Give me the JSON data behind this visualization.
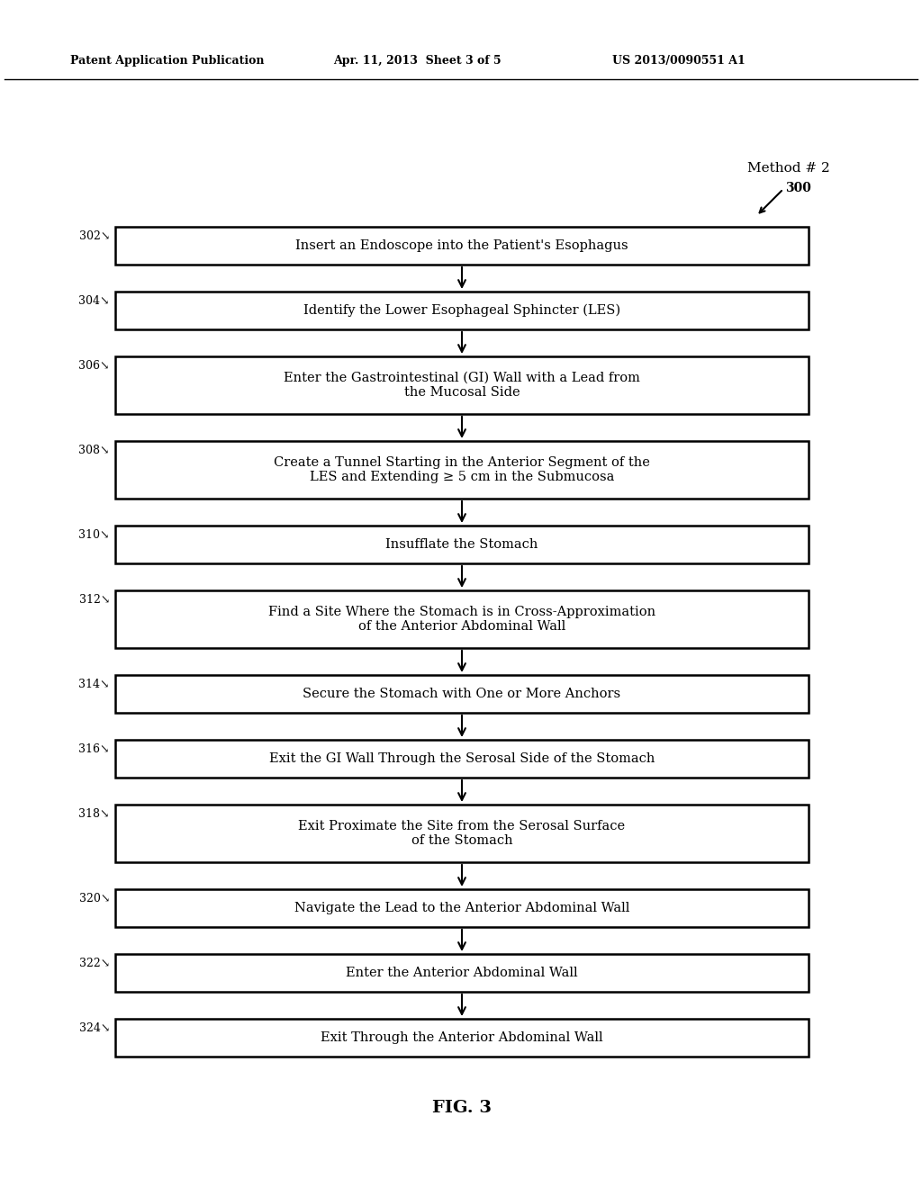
{
  "bg_color": "#ffffff",
  "header_left": "Patent Application Publication",
  "header_mid": "Apr. 11, 2013  Sheet 3 of 5",
  "header_right": "US 2013/0090551 A1",
  "method_label": "Method # 2",
  "fig_label": "FIG. 3",
  "diagram_label": "300",
  "steps": [
    {
      "num": "302",
      "text": "Insert an Endoscope into the Patient's Esophagus",
      "lines": 1
    },
    {
      "num": "304",
      "text": "Identify the Lower Esophageal Sphincter (LES)",
      "lines": 1
    },
    {
      "num": "306",
      "text": "Enter the Gastrointestinal (GI) Wall with a Lead from\nthe Mucosal Side",
      "lines": 2
    },
    {
      "num": "308",
      "text": "Create a Tunnel Starting in the Anterior Segment of the\nLES and Extending ≥ 5 cm in the Submucosa",
      "lines": 2
    },
    {
      "num": "310",
      "text": "Insufflate the Stomach",
      "lines": 1
    },
    {
      "num": "312",
      "text": "Find a Site Where the Stomach is in Cross-Approximation\nof the Anterior Abdominal Wall",
      "lines": 2
    },
    {
      "num": "314",
      "text": "Secure the Stomach with One or More Anchors",
      "lines": 1
    },
    {
      "num": "316",
      "text": "Exit the GI Wall Through the Serosal Side of the Stomach",
      "lines": 1
    },
    {
      "num": "318",
      "text": "Exit Proximate the Site from the Serosal Surface\nof the Stomach",
      "lines": 2
    },
    {
      "num": "320",
      "text": "Navigate the Lead to the Anterior Abdominal Wall",
      "lines": 1
    },
    {
      "num": "322",
      "text": "Enter the Anterior Abdominal Wall",
      "lines": 1
    },
    {
      "num": "324",
      "text": "Exit Through the Anterior Abdominal Wall",
      "lines": 1
    }
  ]
}
